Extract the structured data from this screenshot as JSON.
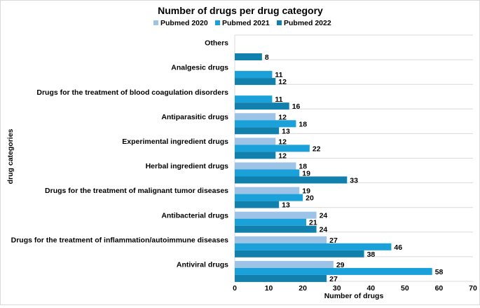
{
  "chart_data": {
    "type": "bar",
    "orientation": "horizontal",
    "title": "Number of drugs per drug category",
    "xlabel": "Number of drugs",
    "ylabel": "drug categories",
    "xlim": [
      0,
      70
    ],
    "xticks": [
      0,
      10,
      20,
      30,
      40,
      50,
      60,
      70
    ],
    "grid": "horizontal separators between categories",
    "legend_position": "top",
    "categories": [
      "Others",
      "Analgesic drugs",
      "Drugs for the treatment of blood coagulation disorders",
      "Antiparasitic drugs",
      "Experimental ingredient drugs",
      "Herbal ingredient drugs",
      "Drugs for the treatment of malignant tumor diseases",
      "Antibacterial drugs",
      "Drugs for the treatment of inflammation/autoimmune diseases",
      "Antiviral drugs"
    ],
    "series": [
      {
        "name": "Pubmed 2020",
        "color": "#9DC3E6",
        "values": [
          null,
          null,
          null,
          12,
          12,
          18,
          19,
          24,
          27,
          29
        ]
      },
      {
        "name": "Pubmed 2021",
        "color": "#1BA1D9",
        "values": [
          null,
          11,
          11,
          18,
          22,
          19,
          20,
          21,
          46,
          58
        ]
      },
      {
        "name": "Pubmed 2022",
        "color": "#1280AC",
        "values": [
          8,
          12,
          16,
          13,
          12,
          33,
          13,
          24,
          38,
          27
        ]
      }
    ]
  }
}
